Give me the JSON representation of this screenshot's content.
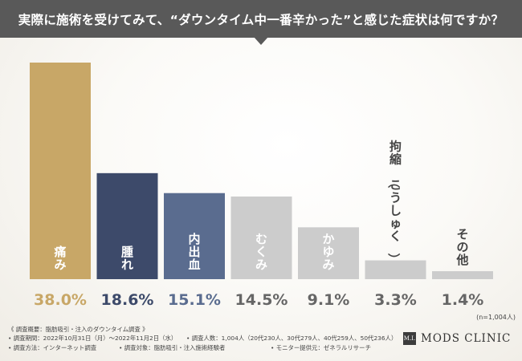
{
  "header": {
    "title": "実際に施術を受けてみて、“ダウンタイム中一番辛かった”と感じた症状は何ですか？"
  },
  "chart_data": {
    "type": "bar",
    "categories": [
      "痛み",
      "腫れ",
      "内出血",
      "むくみ",
      "かゆみ",
      "拘縮（こうしゅく）",
      "その他"
    ],
    "values": [
      38.0,
      18.6,
      15.1,
      14.5,
      9.1,
      3.3,
      1.4
    ],
    "value_labels": [
      "38.0%",
      "18.6%",
      "15.1%",
      "14.5%",
      "9.1%",
      "3.3%",
      "1.4%"
    ],
    "colors": [
      "#c8a767",
      "#3d4a6a",
      "#5a6c8f",
      "#cccccc",
      "#cccccc",
      "#cccccc",
      "#cccccc"
    ],
    "value_colors": [
      "#c8a767",
      "#3d4a6a",
      "#5a6c8f",
      "#666666",
      "#666666",
      "#666666",
      "#666666"
    ],
    "ylim": [
      0,
      38.0
    ],
    "grid": false,
    "sample_note": "(n=1,004人)"
  },
  "footer": {
    "line1": "《 調査概要：脂肪吸引・注入のダウンタイム調査 》",
    "period": "• 調査期間：2022年10月31日（月）～2022年11月2日（水）",
    "count": "• 調査人数：1,004人（20代230人、30代279人、40代259人、50代236人）",
    "method": "• 調査方法：インターネット調査",
    "target": "• 調査対象：脂肪吸引・注入施術経験者",
    "provider": "• モニター提供元：ゼネラルリサーチ"
  },
  "logo": {
    "mark": "M.I.",
    "brand": "MODS CLINIC"
  }
}
